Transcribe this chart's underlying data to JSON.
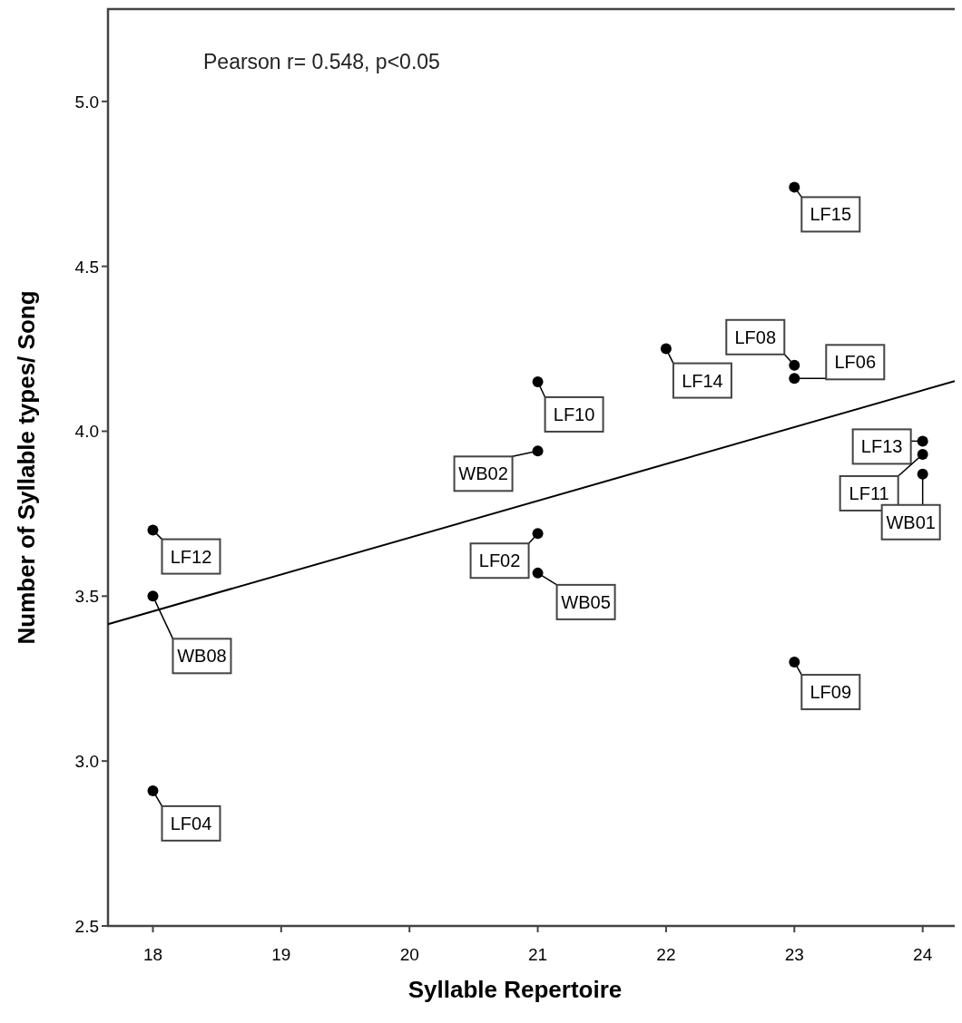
{
  "chart_data": {
    "type": "scatter",
    "xlabel": "Syllable Repertoire",
    "ylabel": "Number of Syllable types/ Song",
    "xlim": [
      17.65,
      24.25
    ],
    "xticks": [
      18,
      19,
      20,
      21,
      22,
      23,
      24
    ],
    "ylim": [
      2.5,
      5.28
    ],
    "yticks": [
      {
        "value": 2.5,
        "label": "2.5"
      },
      {
        "value": 3.0,
        "label": "3.0"
      },
      {
        "value": 3.5,
        "label": "3.5"
      },
      {
        "value": 4.0,
        "label": "4.0"
      },
      {
        "value": 4.5,
        "label": "4.5"
      },
      {
        "value": 5.0,
        "label": "5.0"
      }
    ],
    "grid": false,
    "marker": "circle",
    "series": [
      {
        "color": "#000000",
        "x": [
          23,
          22,
          23,
          23,
          21,
          21,
          24,
          24,
          24,
          18,
          21,
          21,
          18,
          23,
          18
        ],
        "values": [
          4.74,
          4.25,
          4.2,
          4.16,
          4.15,
          3.94,
          3.97,
          3.93,
          3.87,
          3.7,
          3.69,
          3.57,
          3.5,
          3.3,
          2.91
        ]
      },
      {
        "type": "line",
        "color": "#000000",
        "line_style": "solid",
        "marker": "none",
        "x": [
          17.65,
          24.25
        ],
        "values": [
          3.415,
          4.152
        ]
      }
    ],
    "annotations": [
      "Pearson r= 0.548, p<0.05",
      {
        "text": "LF15",
        "x": 23,
        "y": 4.74
      },
      {
        "text": "LF14",
        "x": 22,
        "y": 4.25
      },
      {
        "text": "LF08",
        "x": 23,
        "y": 4.2
      },
      {
        "text": "LF06",
        "x": 23,
        "y": 4.16
      },
      {
        "text": "LF10",
        "x": 21,
        "y": 4.15
      },
      {
        "text": "WB02",
        "x": 21,
        "y": 3.94
      },
      {
        "text": "LF13",
        "x": 24,
        "y": 3.97
      },
      {
        "text": "LF11",
        "x": 24,
        "y": 3.93
      },
      {
        "text": "WB01",
        "x": 24,
        "y": 3.87
      },
      {
        "text": "LF12",
        "x": 18,
        "y": 3.7
      },
      {
        "text": "LF02",
        "x": 21,
        "y": 3.69
      },
      {
        "text": "WB05",
        "x": 21,
        "y": 3.57
      },
      {
        "text": "WB08",
        "x": 18,
        "y": 3.5
      },
      {
        "text": "LF09",
        "x": 23,
        "y": 3.3
      },
      {
        "text": "LF04",
        "x": 18,
        "y": 2.91
      }
    ]
  }
}
